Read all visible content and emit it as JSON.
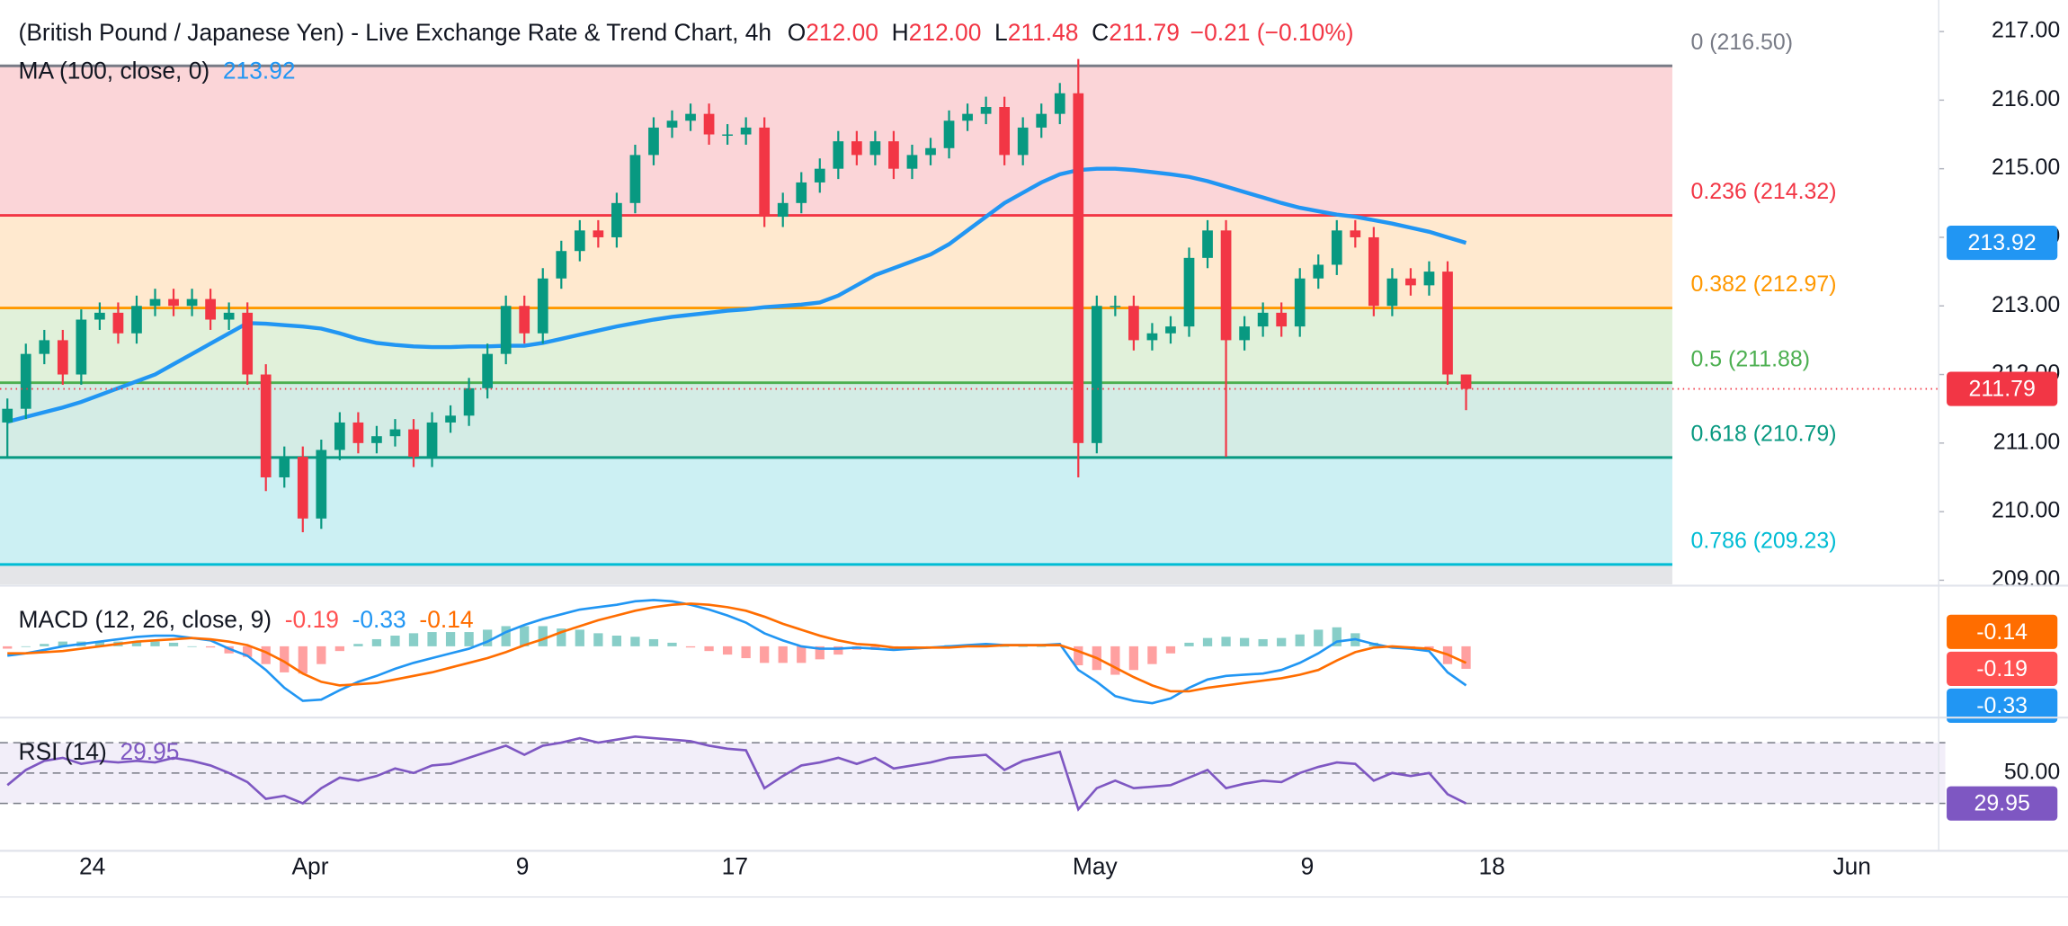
{
  "chart_data": [
    {
      "type": "candlestick",
      "title": "(British Pound / Japanese Yen) - Live Exchange Rate & Trend Chart, 4h",
      "quote_labels": [
        "O",
        "H",
        "L",
        "C"
      ],
      "quote_values": [
        "212.00",
        "212.00",
        "211.48",
        "211.79"
      ],
      "change": "−0.21 (−0.10%)",
      "up_color": "#089981",
      "down_color": "#f23645",
      "x": [
        0,
        1,
        2,
        3,
        4,
        5,
        6,
        7,
        8,
        9,
        10,
        11,
        12,
        13,
        14,
        15,
        16,
        17,
        18,
        19,
        20,
        21,
        22,
        23,
        24,
        25,
        26,
        27,
        28,
        29,
        30,
        31,
        32,
        33,
        34,
        35,
        36,
        37,
        38,
        39,
        40,
        41,
        42,
        43,
        44,
        45,
        46,
        47,
        48,
        49,
        50,
        51,
        52,
        53,
        54,
        55,
        56,
        57,
        58,
        59,
        60,
        61,
        62,
        63,
        64,
        65,
        66,
        67,
        68,
        69,
        70,
        71,
        72,
        73,
        74,
        75,
        76,
        77,
        78,
        79
      ],
      "open": [
        211.3,
        211.5,
        212.3,
        212.5,
        212.0,
        212.8,
        212.9,
        212.6,
        213.0,
        213.1,
        213.0,
        213.1,
        212.8,
        212.9,
        212.0,
        210.5,
        210.8,
        209.9,
        210.9,
        211.3,
        211.0,
        211.1,
        211.2,
        210.8,
        211.3,
        211.4,
        211.8,
        212.3,
        213.0,
        212.6,
        213.4,
        213.8,
        214.1,
        214.0,
        214.5,
        215.2,
        215.6,
        215.7,
        215.8,
        215.5,
        215.5,
        215.6,
        214.3,
        214.5,
        214.8,
        215.0,
        215.4,
        215.2,
        215.4,
        215.0,
        215.2,
        215.3,
        215.7,
        215.8,
        215.9,
        215.2,
        215.6,
        215.8,
        216.1,
        211.0,
        213.0,
        213.0,
        212.5,
        212.6,
        212.7,
        213.7,
        214.1,
        212.5,
        212.7,
        212.9,
        212.7,
        213.4,
        213.6,
        214.1,
        214.0,
        213.0,
        213.4,
        213.3,
        213.5,
        212.0
      ],
      "high": [
        211.65,
        212.45,
        212.65,
        212.65,
        212.95,
        213.05,
        213.05,
        213.15,
        213.25,
        213.25,
        213.25,
        213.25,
        213.05,
        213.05,
        212.15,
        210.95,
        210.95,
        211.05,
        211.45,
        211.45,
        211.25,
        211.35,
        211.35,
        211.45,
        211.55,
        211.95,
        212.45,
        213.15,
        213.15,
        213.55,
        213.95,
        214.25,
        214.25,
        214.65,
        215.35,
        215.75,
        215.85,
        215.95,
        215.95,
        215.65,
        215.75,
        215.75,
        214.65,
        214.95,
        215.15,
        215.55,
        215.55,
        215.55,
        215.55,
        215.35,
        215.45,
        215.85,
        215.95,
        216.05,
        216.05,
        215.75,
        215.95,
        216.25,
        216.6,
        213.15,
        213.15,
        213.15,
        212.75,
        212.85,
        213.85,
        214.25,
        214.25,
        212.85,
        213.05,
        213.05,
        213.55,
        213.75,
        214.25,
        214.25,
        214.15,
        213.55,
        213.55,
        213.65,
        213.65,
        212.0
      ],
      "low": [
        210.8,
        211.35,
        212.15,
        211.85,
        211.85,
        212.65,
        212.45,
        212.45,
        212.85,
        212.85,
        212.85,
        212.65,
        212.65,
        211.85,
        210.3,
        210.35,
        209.7,
        209.75,
        210.75,
        210.85,
        210.85,
        210.95,
        210.65,
        210.65,
        211.15,
        211.25,
        211.65,
        212.15,
        212.45,
        212.45,
        213.25,
        213.65,
        213.85,
        213.85,
        214.35,
        215.05,
        215.45,
        215.55,
        215.35,
        215.35,
        215.35,
        214.15,
        214.15,
        214.35,
        214.65,
        214.85,
        215.05,
        215.05,
        214.85,
        214.85,
        215.05,
        215.15,
        215.55,
        215.65,
        215.05,
        215.05,
        215.45,
        215.65,
        210.5,
        210.85,
        212.85,
        212.35,
        212.35,
        212.45,
        212.55,
        213.55,
        210.8,
        212.35,
        212.55,
        212.55,
        212.55,
        213.25,
        213.45,
        213.85,
        212.85,
        212.85,
        213.15,
        213.15,
        211.85,
        211.48
      ],
      "close": [
        211.5,
        212.3,
        212.5,
        212.0,
        212.8,
        212.9,
        212.6,
        213.0,
        213.1,
        213.0,
        213.1,
        212.8,
        212.9,
        212.0,
        210.5,
        210.8,
        209.9,
        210.9,
        211.3,
        211.0,
        211.1,
        211.2,
        210.8,
        211.3,
        211.4,
        211.8,
        212.3,
        213.0,
        212.6,
        213.4,
        213.8,
        214.1,
        214.0,
        214.5,
        215.2,
        215.6,
        215.7,
        215.8,
        215.5,
        215.5,
        215.6,
        214.3,
        214.5,
        214.8,
        215.0,
        215.4,
        215.2,
        215.4,
        215.0,
        215.2,
        215.3,
        215.7,
        215.8,
        215.9,
        215.2,
        215.6,
        215.8,
        216.1,
        211.0,
        213.0,
        213.0,
        212.5,
        212.6,
        212.7,
        213.7,
        214.1,
        212.5,
        212.7,
        212.9,
        212.7,
        213.4,
        213.6,
        214.1,
        214.0,
        213.0,
        213.4,
        213.3,
        213.5,
        212.0,
        211.79
      ],
      "ma": {
        "name": "MA (100, close, 0)",
        "color": "#2196f3",
        "values": [
          211.31,
          211.38,
          211.45,
          211.52,
          211.6,
          211.7,
          211.8,
          211.9,
          212.0,
          212.15,
          212.3,
          212.45,
          212.6,
          212.75,
          212.74,
          212.72,
          212.7,
          212.67,
          212.6,
          212.52,
          212.46,
          212.43,
          212.41,
          212.4,
          212.4,
          212.41,
          212.41,
          212.42,
          212.42,
          212.46,
          212.52,
          212.58,
          212.64,
          212.7,
          212.75,
          212.8,
          212.84,
          212.87,
          212.9,
          212.93,
          212.95,
          212.98,
          213.0,
          213.02,
          213.05,
          213.15,
          213.3,
          213.45,
          213.55,
          213.65,
          213.75,
          213.9,
          214.1,
          214.3,
          214.5,
          214.65,
          214.8,
          214.92,
          214.98,
          215.0,
          215.0,
          214.98,
          214.95,
          214.92,
          214.88,
          214.82,
          214.74,
          214.66,
          214.58,
          214.5,
          214.43,
          214.38,
          214.33,
          214.3,
          214.25,
          214.2,
          214.14,
          214.08,
          214.0,
          213.92
        ]
      },
      "fib_levels": [
        {
          "label": "0 (216.50)",
          "value": 216.5,
          "color": "#787b86",
          "fill": "#fbd5d8"
        },
        {
          "label": "0.236 (214.32)",
          "value": 214.32,
          "color": "#f23645",
          "fill": "#ffe9cf"
        },
        {
          "label": "0.382 (212.97)",
          "value": 212.97,
          "color": "#ff9800",
          "fill": "#e1f1da"
        },
        {
          "label": "0.5 (211.88)",
          "value": 211.88,
          "color": "#4caf50",
          "fill": "#d4ece5"
        },
        {
          "label": "0.618 (210.79)",
          "value": 210.79,
          "color": "#089981",
          "fill": "#ccf0f3"
        },
        {
          "label": "0.786 (209.23)",
          "value": 209.23,
          "color": "#00bcd4",
          "fill": "#e4e5e8"
        }
      ],
      "xlim": [
        -0.4,
        104.6
      ],
      "xticks": [
        {
          "value": 4.6,
          "label": "24"
        },
        {
          "value": 16.4,
          "label": "Apr"
        },
        {
          "value": 27.9,
          "label": "9"
        },
        {
          "value": 39.4,
          "label": "17"
        },
        {
          "value": 58.9,
          "label": "May"
        },
        {
          "value": 70.4,
          "label": "9"
        },
        {
          "value": 80.4,
          "label": "18"
        },
        {
          "value": 99.9,
          "label": "Jun"
        }
      ],
      "ylim": [
        208.94,
        217.46
      ],
      "yticks": [
        {
          "value": 209,
          "label": "209.00"
        },
        {
          "value": 210,
          "label": "210.00"
        },
        {
          "value": 211,
          "label": "211.00"
        },
        {
          "value": 212,
          "label": "212.00"
        },
        {
          "value": 213,
          "label": "213.00"
        },
        {
          "value": 214,
          "label": "214.00"
        },
        {
          "value": 215,
          "label": "215.00"
        },
        {
          "value": 216,
          "label": "216.00"
        },
        {
          "value": 217,
          "label": "217.00"
        }
      ],
      "grid": false
    },
    {
      "type": "macd",
      "title": "MACD (12, 26, close, 9)",
      "histogram": {
        "up_color": "#26a69a",
        "down_color": "#ff5252",
        "values": [
          -0.02,
          0.0,
          0.02,
          0.04,
          0.04,
          0.04,
          0.04,
          0.04,
          0.04,
          0.03,
          0.0,
          -0.01,
          -0.06,
          -0.09,
          -0.15,
          -0.22,
          -0.23,
          -0.15,
          -0.04,
          0.02,
          0.06,
          0.09,
          0.11,
          0.12,
          0.12,
          0.12,
          0.14,
          0.17,
          0.17,
          0.17,
          0.15,
          0.14,
          0.11,
          0.09,
          0.08,
          0.06,
          0.03,
          -0.01,
          -0.04,
          -0.07,
          -0.1,
          -0.14,
          -0.14,
          -0.14,
          -0.11,
          -0.07,
          -0.03,
          -0.03,
          -0.02,
          -0.01,
          0.0,
          0.01,
          0.01,
          0.02,
          0.0,
          0.0,
          0.0,
          0.01,
          -0.16,
          -0.2,
          -0.24,
          -0.2,
          -0.15,
          -0.06,
          0.03,
          0.07,
          0.08,
          0.07,
          0.06,
          0.07,
          0.1,
          0.14,
          0.16,
          0.11,
          0.03,
          -0.01,
          -0.01,
          -0.02,
          -0.15,
          -0.19
        ]
      },
      "series": [
        {
          "color": "#2196f3",
          "values": [
            -0.08,
            -0.06,
            -0.03,
            0.0,
            0.02,
            0.04,
            0.06,
            0.08,
            0.09,
            0.09,
            0.07,
            0.05,
            -0.02,
            -0.08,
            -0.2,
            -0.35,
            -0.46,
            -0.45,
            -0.37,
            -0.3,
            -0.25,
            -0.19,
            -0.14,
            -0.1,
            -0.06,
            -0.02,
            0.04,
            0.12,
            0.18,
            0.23,
            0.27,
            0.31,
            0.33,
            0.35,
            0.38,
            0.39,
            0.38,
            0.35,
            0.31,
            0.26,
            0.2,
            0.11,
            0.05,
            0.0,
            -0.02,
            -0.02,
            -0.01,
            -0.02,
            -0.03,
            -0.02,
            -0.01,
            0.0,
            0.01,
            0.02,
            0.01,
            0.01,
            0.01,
            0.02,
            -0.2,
            -0.3,
            -0.42,
            -0.46,
            -0.48,
            -0.44,
            -0.35,
            -0.28,
            -0.25,
            -0.24,
            -0.23,
            -0.2,
            -0.14,
            -0.06,
            0.04,
            0.06,
            0.02,
            -0.01,
            -0.02,
            -0.04,
            -0.22,
            -0.33
          ]
        },
        {
          "color": "#ff6d00",
          "values": [
            -0.06,
            -0.06,
            -0.05,
            -0.04,
            -0.02,
            0.0,
            0.02,
            0.04,
            0.05,
            0.06,
            0.07,
            0.06,
            0.04,
            0.01,
            -0.05,
            -0.13,
            -0.23,
            -0.3,
            -0.33,
            -0.32,
            -0.31,
            -0.28,
            -0.25,
            -0.22,
            -0.18,
            -0.14,
            -0.1,
            -0.05,
            0.01,
            0.06,
            0.12,
            0.17,
            0.22,
            0.26,
            0.3,
            0.33,
            0.35,
            0.36,
            0.35,
            0.33,
            0.3,
            0.25,
            0.19,
            0.14,
            0.09,
            0.05,
            0.02,
            0.01,
            -0.01,
            -0.01,
            -0.01,
            -0.01,
            0.0,
            0.0,
            0.01,
            0.01,
            0.01,
            0.01,
            -0.04,
            -0.1,
            -0.18,
            -0.26,
            -0.33,
            -0.38,
            -0.38,
            -0.35,
            -0.33,
            -0.31,
            -0.29,
            -0.27,
            -0.24,
            -0.2,
            -0.12,
            -0.05,
            -0.01,
            0.0,
            -0.01,
            -0.02,
            -0.07,
            -0.14
          ]
        }
      ],
      "ylim": [
        -0.59,
        0.5
      ]
    },
    {
      "type": "rsi",
      "title": "RSI (14)",
      "series": [
        {
          "color": "#7e57c2",
          "values": [
            42,
            52,
            58,
            60,
            56,
            58,
            57,
            58,
            57,
            60,
            58,
            55,
            50,
            44,
            33,
            35,
            30,
            40,
            47,
            45,
            48,
            53,
            50,
            55,
            56,
            60,
            64,
            68,
            62,
            68,
            70,
            73,
            70,
            72,
            74,
            73,
            72,
            71,
            68,
            66,
            65,
            40,
            48,
            55,
            57,
            60,
            56,
            60,
            53,
            55,
            57,
            60,
            61,
            62,
            52,
            58,
            61,
            64,
            26,
            40,
            45,
            40,
            41,
            42,
            47,
            52,
            40,
            43,
            45,
            44,
            50,
            54,
            57,
            56,
            45,
            50,
            48,
            50,
            36,
            29.95
          ]
        }
      ],
      "levels": [
        70,
        30
      ],
      "ylim": [
        -1.3,
        85.7
      ],
      "yticks": [
        {
          "value": 50,
          "label": "50.00"
        }
      ]
    }
  ]
}
